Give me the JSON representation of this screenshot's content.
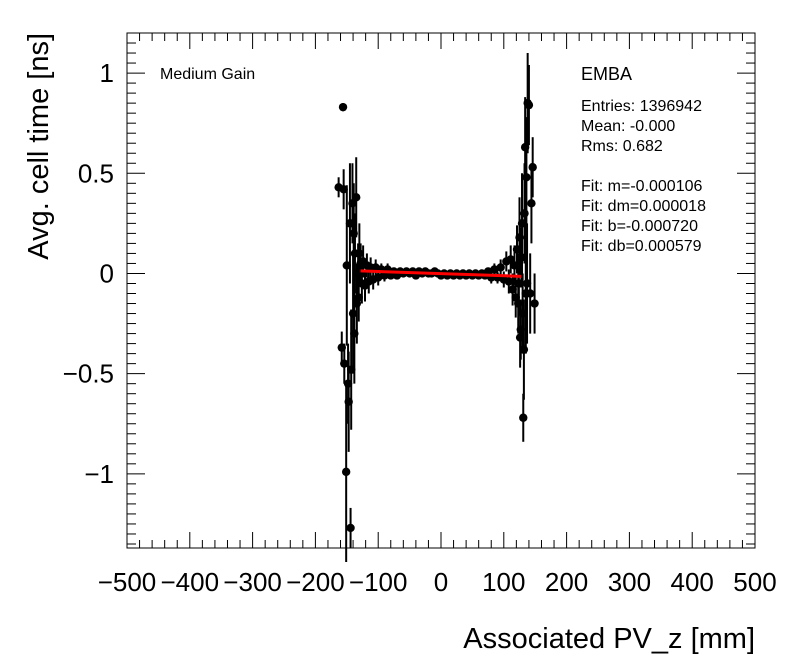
{
  "chart_data": {
    "type": "scatter",
    "xlabel": "Associated PV_z [mm]",
    "ylabel": "Avg. cell time [ns]",
    "xlim": [
      -500,
      500
    ],
    "ylim": [
      -1.37,
      1.2
    ],
    "x_ticks": [
      -500,
      -400,
      -300,
      -200,
      -100,
      0,
      100,
      200,
      300,
      400,
      500
    ],
    "x_tick_labels": [
      "−500",
      "−400",
      "−300",
      "−200",
      "−100",
      "0",
      "100",
      "200",
      "300",
      "400",
      "500"
    ],
    "y_ticks": [
      -1,
      -0.5,
      0,
      0.5,
      1
    ],
    "y_tick_labels": [
      "−1",
      "−0.5",
      "0",
      "0.5",
      "1"
    ],
    "grid": false,
    "annotations": {
      "gain": "Medium Gain",
      "region": "EMBA",
      "stats": [
        "Entries: 1396942",
        "Mean: -0.000",
        "Rms: 0.682"
      ],
      "fit": [
        "Fit: m=-0.000106",
        "Fit: dm=0.000018",
        "Fit: b=-0.000720",
        "Fit: db=0.000579"
      ]
    },
    "fit_line": {
      "x": [
        -128,
        128
      ],
      "y": [
        0.0129,
        -0.0143
      ],
      "color": "#ff0000"
    },
    "marker_color": "#000000",
    "series": [
      {
        "points": [
          {
            "x": -163,
            "y": 0.43,
            "err": 0.05
          },
          {
            "x": -158,
            "y": -0.37,
            "err": 0.08
          },
          {
            "x": -156,
            "y": 0.83,
            "err": 0.02
          },
          {
            "x": -155,
            "y": 0.42,
            "err": 0.1
          },
          {
            "x": -154,
            "y": -0.45,
            "err": 0.1
          },
          {
            "x": -151,
            "y": -0.99,
            "err": 0.45
          },
          {
            "x": -150,
            "y": 0.04,
            "err": 0.4
          },
          {
            "x": -148,
            "y": -0.55,
            "err": 0.2
          },
          {
            "x": -147,
            "y": -0.64,
            "err": 0.25
          },
          {
            "x": -145,
            "y": 0.25,
            "err": 0.3
          },
          {
            "x": -144,
            "y": -1.27,
            "err": 0.1
          },
          {
            "x": -143,
            "y": -0.48,
            "err": 0.3
          },
          {
            "x": -141,
            "y": 0.35,
            "err": 0.2
          },
          {
            "x": -140,
            "y": -0.2,
            "err": 0.3
          },
          {
            "x": -139,
            "y": 0.2,
            "err": 0.25
          },
          {
            "x": -138,
            "y": -0.3,
            "err": 0.25
          },
          {
            "x": -137,
            "y": 0.1,
            "err": 0.2
          },
          {
            "x": -135,
            "y": 0.38,
            "err": 0.2
          },
          {
            "x": -134,
            "y": -0.15,
            "err": 0.2
          },
          {
            "x": -132,
            "y": 0.0,
            "err": 0.15
          },
          {
            "x": -131,
            "y": -0.12,
            "err": 0.12
          },
          {
            "x": -130,
            "y": 0.1,
            "err": 0.15
          },
          {
            "x": -128,
            "y": 0.05,
            "err": 0.1
          },
          {
            "x": -126,
            "y": -0.05,
            "err": 0.1
          },
          {
            "x": -124,
            "y": 0.06,
            "err": 0.08
          },
          {
            "x": -121,
            "y": -0.06,
            "err": 0.08
          },
          {
            "x": -118,
            "y": 0.04,
            "err": 0.06
          },
          {
            "x": -115,
            "y": -0.04,
            "err": 0.06
          },
          {
            "x": -112,
            "y": 0.03,
            "err": 0.05
          },
          {
            "x": -108,
            "y": -0.03,
            "err": 0.05
          },
          {
            "x": -104,
            "y": 0.03,
            "err": 0.04
          },
          {
            "x": -100,
            "y": -0.02,
            "err": 0.04
          },
          {
            "x": -95,
            "y": 0.02,
            "err": 0.03
          },
          {
            "x": -90,
            "y": -0.01,
            "err": 0.03
          },
          {
            "x": -85,
            "y": 0.02,
            "err": 0.03
          },
          {
            "x": -80,
            "y": -0.01,
            "err": 0.02
          },
          {
            "x": -75,
            "y": 0.01,
            "err": 0.02
          },
          {
            "x": -70,
            "y": -0.01,
            "err": 0.02
          },
          {
            "x": -65,
            "y": 0.01,
            "err": 0.02
          },
          {
            "x": -60,
            "y": 0.0,
            "err": 0.02
          },
          {
            "x": -55,
            "y": 0.01,
            "err": 0.02
          },
          {
            "x": -50,
            "y": 0.0,
            "err": 0.02
          },
          {
            "x": -45,
            "y": 0.01,
            "err": 0.02
          },
          {
            "x": -40,
            "y": -0.01,
            "err": 0.02
          },
          {
            "x": -35,
            "y": 0.01,
            "err": 0.02
          },
          {
            "x": -30,
            "y": 0.0,
            "err": 0.02
          },
          {
            "x": -25,
            "y": 0.01,
            "err": 0.02
          },
          {
            "x": -20,
            "y": 0.0,
            "err": 0.02
          },
          {
            "x": -15,
            "y": 0.0,
            "err": 0.02
          },
          {
            "x": -10,
            "y": 0.01,
            "err": 0.02
          },
          {
            "x": -5,
            "y": 0.0,
            "err": 0.02
          },
          {
            "x": 0,
            "y": -0.01,
            "err": 0.02
          },
          {
            "x": 5,
            "y": 0.0,
            "err": 0.02
          },
          {
            "x": 10,
            "y": -0.01,
            "err": 0.02
          },
          {
            "x": 15,
            "y": 0.0,
            "err": 0.02
          },
          {
            "x": 20,
            "y": -0.01,
            "err": 0.02
          },
          {
            "x": 25,
            "y": 0.0,
            "err": 0.02
          },
          {
            "x": 30,
            "y": -0.01,
            "err": 0.02
          },
          {
            "x": 35,
            "y": 0.0,
            "err": 0.02
          },
          {
            "x": 40,
            "y": -0.01,
            "err": 0.02
          },
          {
            "x": 45,
            "y": 0.0,
            "err": 0.02
          },
          {
            "x": 50,
            "y": -0.01,
            "err": 0.02
          },
          {
            "x": 55,
            "y": 0.0,
            "err": 0.02
          },
          {
            "x": 60,
            "y": -0.01,
            "err": 0.02
          },
          {
            "x": 65,
            "y": 0.0,
            "err": 0.02
          },
          {
            "x": 70,
            "y": -0.01,
            "err": 0.02
          },
          {
            "x": 75,
            "y": 0.01,
            "err": 0.02
          },
          {
            "x": 80,
            "y": -0.02,
            "err": 0.03
          },
          {
            "x": 85,
            "y": 0.02,
            "err": 0.03
          },
          {
            "x": 90,
            "y": -0.02,
            "err": 0.03
          },
          {
            "x": 95,
            "y": 0.03,
            "err": 0.04
          },
          {
            "x": 100,
            "y": -0.03,
            "err": 0.04
          },
          {
            "x": 104,
            "y": 0.06,
            "err": 0.05
          },
          {
            "x": 108,
            "y": -0.04,
            "err": 0.06
          },
          {
            "x": 111,
            "y": 0.07,
            "err": 0.07
          },
          {
            "x": 114,
            "y": -0.08,
            "err": 0.08
          },
          {
            "x": 117,
            "y": 0.04,
            "err": 0.1
          },
          {
            "x": 119,
            "y": -0.12,
            "err": 0.1
          },
          {
            "x": 121,
            "y": 0.12,
            "err": 0.12
          },
          {
            "x": 123,
            "y": -0.15,
            "err": 0.15
          },
          {
            "x": 124,
            "y": -0.05,
            "err": 0.15
          },
          {
            "x": 125,
            "y": 0.18,
            "err": 0.2
          },
          {
            "x": 126,
            "y": -0.32,
            "err": 0.15
          },
          {
            "x": 127,
            "y": -0.28,
            "err": 0.15
          },
          {
            "x": 128,
            "y": 0.08,
            "err": 0.15
          },
          {
            "x": 129,
            "y": 0.25,
            "err": 0.25
          },
          {
            "x": 130,
            "y": -0.2,
            "err": 0.2
          },
          {
            "x": 131,
            "y": -0.72,
            "err": 0.12
          },
          {
            "x": 132,
            "y": -0.38,
            "err": 0.25
          },
          {
            "x": 133,
            "y": 0.3,
            "err": 0.25
          },
          {
            "x": 134,
            "y": 0.63,
            "err": 0.25
          },
          {
            "x": 135,
            "y": -0.1,
            "err": 0.3
          },
          {
            "x": 136,
            "y": 0.48,
            "err": 0.3
          },
          {
            "x": 137,
            "y": -0.05,
            "err": 0.3
          },
          {
            "x": 138,
            "y": 0.85,
            "err": 0.25
          },
          {
            "x": 140,
            "y": 0.84,
            "err": 0.2
          },
          {
            "x": 142,
            "y": -0.1,
            "err": 0.2
          },
          {
            "x": 144,
            "y": 0.35,
            "err": 0.2
          },
          {
            "x": 146,
            "y": 0.53,
            "err": 0.15
          },
          {
            "x": 149,
            "y": -0.15,
            "err": 0.15
          }
        ]
      }
    ]
  }
}
